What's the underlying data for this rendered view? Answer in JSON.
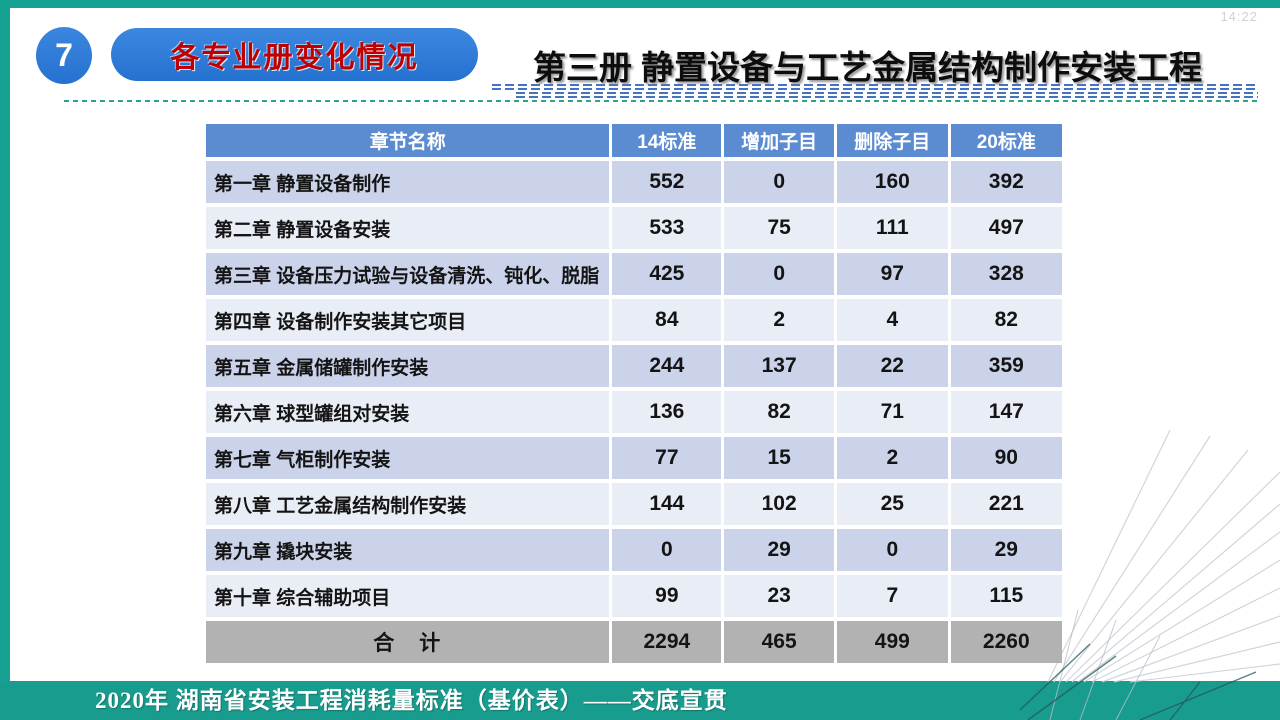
{
  "slide": {
    "number": "7",
    "clock": "14:22",
    "section_label": "各专业册变化情况",
    "title": "第三册 静置设备与工艺金属结构制作安装工程",
    "footer": "2020年  湖南省安装工程消耗量标准（基价表）——交底宣贯"
  },
  "table": {
    "headers": [
      "章节名称",
      "14标准",
      "增加子目",
      "删除子目",
      "20标准"
    ],
    "rows": [
      {
        "name": "第一章 静置设备制作",
        "v14": "552",
        "add": "0",
        "del": "160",
        "v20": "392"
      },
      {
        "name": "第二章 静置设备安装",
        "v14": "533",
        "add": "75",
        "del": "111",
        "v20": "497"
      },
      {
        "name": "第三章 设备压力试验与设备清洗、钝化、脱脂",
        "v14": "425",
        "add": "0",
        "del": "97",
        "v20": "328"
      },
      {
        "name": "第四章 设备制作安装其它项目",
        "v14": "84",
        "add": "2",
        "del": "4",
        "v20": "82"
      },
      {
        "name": "第五章 金属储罐制作安装",
        "v14": "244",
        "add": "137",
        "del": "22",
        "v20": "359"
      },
      {
        "name": "第六章 球型罐组对安装",
        "v14": "136",
        "add": "82",
        "del": "71",
        "v20": "147"
      },
      {
        "name": "第七章 气柜制作安装",
        "v14": "77",
        "add": "15",
        "del": "2",
        "v20": "90"
      },
      {
        "name": "第八章 工艺金属结构制作安装",
        "v14": "144",
        "add": "102",
        "del": "25",
        "v20": "221"
      },
      {
        "name": "第九章 撬块安装",
        "v14": "0",
        "add": "29",
        "del": "0",
        "v20": "29"
      },
      {
        "name": "第十章 综合辅助项目",
        "v14": "99",
        "add": "23",
        "del": "7",
        "v20": "115"
      }
    ],
    "total": {
      "name": "合　计",
      "v14": "2294",
      "add": "465",
      "del": "499",
      "v20": "2260"
    }
  },
  "colors": {
    "accent_teal": "#16a292",
    "footer_teal": "#189c8d",
    "brand_blue": "#2c7bd6",
    "header_blue": "#5b8bd0",
    "row_dark": "#cbd3ea",
    "row_light": "#e9edf6",
    "total_gray": "#b2b2b2",
    "pill_text_red": "#c00000",
    "dash_blue": "#4472c4"
  }
}
